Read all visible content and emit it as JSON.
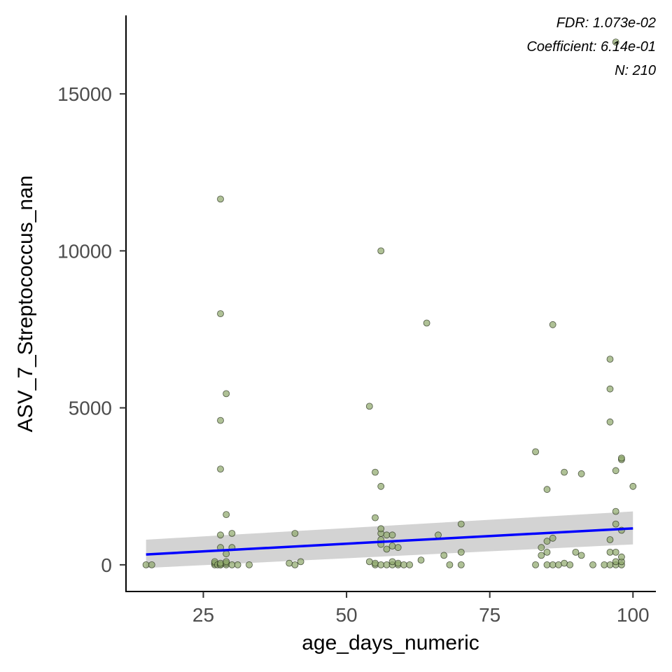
{
  "chart_data": {
    "type": "scatter",
    "xlabel": "age_days_numeric",
    "ylabel": "ASV_7_Streptococcus_nan",
    "xlim": [
      11.5,
      104
    ],
    "ylim": [
      -850,
      17500
    ],
    "x_ticks": [
      25,
      50,
      75,
      100
    ],
    "y_ticks": [
      0,
      5000,
      10000,
      15000
    ],
    "x_tick_labels": [
      "25",
      "50",
      "75",
      "100"
    ],
    "y_tick_labels": [
      "0",
      "5000",
      "10000",
      "15000"
    ],
    "grid": false,
    "annotations": [
      "FDR: 1.073e-02",
      "Coefficient: 6.14e-01",
      "N: 210"
    ],
    "colors": {
      "point_fill": "#8da66a",
      "point_stroke": "#2b3320",
      "trend_line": "#0000ff",
      "confidence_band": "#c8c8c8"
    },
    "trend": {
      "x": [
        15,
        100
      ],
      "y": [
        330,
        1160
      ],
      "ci_lower": [
        -100,
        650
      ],
      "ci_upper": [
        800,
        1700
      ]
    },
    "points": [
      [
        15,
        0
      ],
      [
        16,
        0
      ],
      [
        27,
        0
      ],
      [
        27,
        50
      ],
      [
        27,
        100
      ],
      [
        27.5,
        0
      ],
      [
        28,
        0
      ],
      [
        28,
        0
      ],
      [
        28,
        50
      ],
      [
        28,
        550
      ],
      [
        28,
        950
      ],
      [
        28,
        3050
      ],
      [
        28,
        4600
      ],
      [
        28,
        8000
      ],
      [
        28,
        11650
      ],
      [
        29,
        0
      ],
      [
        29,
        50
      ],
      [
        29,
        100
      ],
      [
        29,
        350
      ],
      [
        29,
        1600
      ],
      [
        29,
        5450
      ],
      [
        30,
        0
      ],
      [
        30,
        550
      ],
      [
        30,
        1000
      ],
      [
        31,
        0
      ],
      [
        33,
        0
      ],
      [
        40,
        50
      ],
      [
        41,
        0
      ],
      [
        41,
        1000
      ],
      [
        42,
        100
      ],
      [
        54,
        100
      ],
      [
        54,
        5050
      ],
      [
        55,
        0
      ],
      [
        55,
        50
      ],
      [
        55,
        1500
      ],
      [
        55,
        2950
      ],
      [
        56,
        0
      ],
      [
        56,
        650
      ],
      [
        56,
        800
      ],
      [
        56,
        1000
      ],
      [
        56,
        1150
      ],
      [
        56,
        2500
      ],
      [
        56,
        10000
      ],
      [
        57,
        0
      ],
      [
        57,
        500
      ],
      [
        57,
        950
      ],
      [
        58,
        0
      ],
      [
        58,
        100
      ],
      [
        58,
        600
      ],
      [
        58,
        950
      ],
      [
        59,
        0
      ],
      [
        59,
        550
      ],
      [
        59,
        50
      ],
      [
        60,
        0
      ],
      [
        61,
        0
      ],
      [
        63,
        150
      ],
      [
        64,
        7700
      ],
      [
        66,
        950
      ],
      [
        67,
        300
      ],
      [
        68,
        0
      ],
      [
        70,
        0
      ],
      [
        70,
        400
      ],
      [
        70,
        1300
      ],
      [
        83,
        0
      ],
      [
        83,
        3600
      ],
      [
        84,
        300
      ],
      [
        84,
        550
      ],
      [
        85,
        0
      ],
      [
        85,
        400
      ],
      [
        85,
        750
      ],
      [
        85,
        2400
      ],
      [
        86,
        0
      ],
      [
        86,
        850
      ],
      [
        86,
        7650
      ],
      [
        87,
        0
      ],
      [
        88,
        50
      ],
      [
        88,
        2950
      ],
      [
        89,
        0
      ],
      [
        90,
        400
      ],
      [
        91,
        300
      ],
      [
        91,
        2900
      ],
      [
        93,
        0
      ],
      [
        95,
        0
      ],
      [
        96,
        0
      ],
      [
        96,
        400
      ],
      [
        96,
        800
      ],
      [
        96,
        4550
      ],
      [
        96,
        5600
      ],
      [
        96,
        6550
      ],
      [
        97,
        0
      ],
      [
        97,
        100
      ],
      [
        97,
        400
      ],
      [
        97,
        1300
      ],
      [
        97,
        1700
      ],
      [
        97,
        3000
      ],
      [
        97,
        16650
      ],
      [
        98,
        0
      ],
      [
        98,
        100
      ],
      [
        98,
        250
      ],
      [
        98,
        1100
      ],
      [
        98,
        3350
      ],
      [
        98,
        3400
      ],
      [
        100,
        2500
      ]
    ]
  }
}
